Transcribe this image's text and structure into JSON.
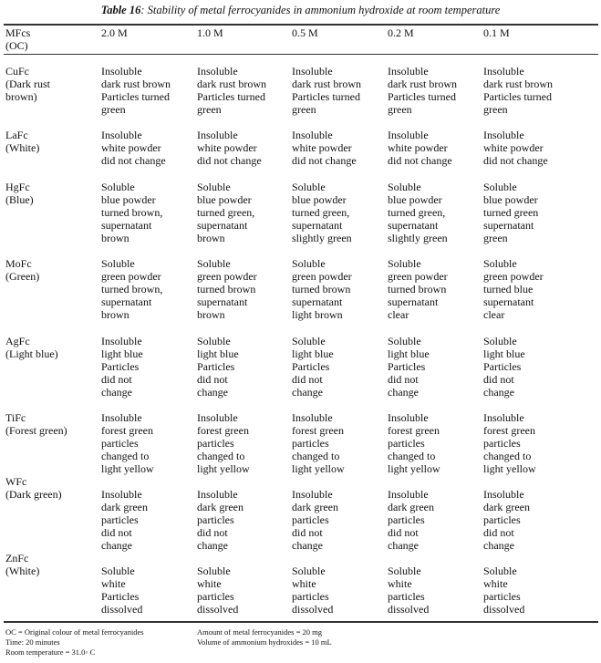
{
  "table": {
    "title_label": "Table 16",
    "title_text": ": Stability of metal ferrocyanides in ammonium hydroxide at room temperature",
    "headers": [
      "MFcs\n(OC)",
      "2.0 M",
      "1.0 M",
      "0.5 M",
      "0.2 M",
      "0.1 M"
    ],
    "rows": [
      {
        "label": "CuFc\n(Dark rust\nbrown)",
        "cells": [
          "Insoluble\ndark rust brown\nParticles   turned\n green",
          "Insoluble\ndark rust brown\nParticles   turned\ngreen",
          "Insoluble\ndark rust brown\nParticles   turned\ngreen",
          "Insoluble\ndark rust brown\nParticles   turned\ngreen",
          "Insoluble\ndark rust brown\nParticles   turned\ngreen"
        ]
      },
      {
        "label": "LaFc\n(White)",
        "cells": [
          "Insoluble\nwhite powder\n did not change",
          " Insoluble\nwhite powder\ndid not change",
          "Insoluble\nwhite powder\ndid not change",
          "Insoluble\nwhite powder\ndid not change",
          "Insoluble\nwhite powder\ndid not change"
        ]
      },
      {
        "label": "HgFc\n(Blue)",
        "cells": [
          "Soluble\nblue powder\nturned brown,\nsupernatant\nbrown",
          "Soluble\nblue powder\nturned green,\nsupernatant\nbrown",
          "Soluble\nblue powder\nturned green,\nsupernatant\nslightly green",
          "Soluble\nblue powder\nturned green,\nsupernatant\nslightly green",
          "Soluble\nblue powder\nturned green\nsupernatant\ngreen"
        ]
      },
      {
        "label": " MoFc\n(Green)",
        "cells": [
          "Soluble\ngreen powder\nturned brown,\nsupernatant\nbrown",
          "Soluble\ngreen powder\nturned brown\nsupernatant\nbrown",
          "Soluble\ngreen powder\nturned brown\nsupernatant\nlight brown",
          "Soluble\ngreen powder\nturned brown\nsupernatant\nclear",
          "Soluble\ngreen powder\nturned blue\nsupernatant\nclear"
        ]
      },
      {
        "label": "AgFc\n(Light blue)",
        "cells": [
          "Insoluble\nlight blue\nParticles\ndid not\nchange",
          "Soluble\nlight blue\nParticles\ndid not\nchange",
          "Soluble\nlight blue\nParticles\ndid not\nchange",
          "Soluble\nlight blue\nParticles\ndid not\nchange",
          "Soluble\nlight blue\nParticles\ndid not\nchange"
        ]
      },
      {
        "label": "TiFc\n(Forest green)",
        "cells": [
          "Insoluble\nforest green\nparticles\nchanged to\nlight yellow",
          "Insoluble\nforest green\nparticles\nchanged to\nlight yellow",
          "Insoluble\nforest green\nparticles\nchanged to\nlight yellow",
          "Insoluble\nforest green\nparticles\nchanged to\nlight yellow",
          "Insoluble\nforest green\nparticles\nchanged to\nlight yellow"
        ]
      },
      {
        "label": "WFc\n(Dark green)",
        "cells": [
          "Insoluble\ndark green\nparticles\ndid not\nchange",
          "Insoluble\ndark green\nparticles\ndid not\nchange",
          "Insoluble\ndark green\nparticles\ndid not\nchange",
          "Insoluble\ndark green\nparticles\ndid not\nchange",
          "Insoluble\ndark green\nparticles\ndid not\nchange"
        ]
      },
      {
        "label": "ZnFc\n(White)",
        "cells": [
          "Soluble\nwhite\nParticles\ndissolved",
          "Soluble\nwhite\nparticles\ndissolved",
          "Soluble\nwhite\nparticles\ndissolved",
          "Soluble\nwhite\nparticles\ndissolved",
          "Soluble\nwhite\nparticles\ndissolved"
        ]
      }
    ],
    "footnotes_left": "OC = Original colour of metal ferrocyanides\nTime: 20 minutes\nRoom temperature = 31.0◦ C",
    "footnotes_right": "Amount of metal ferrocyanides = 20 mg\nVolume of ammonium hydroxides = 10 mL"
  }
}
